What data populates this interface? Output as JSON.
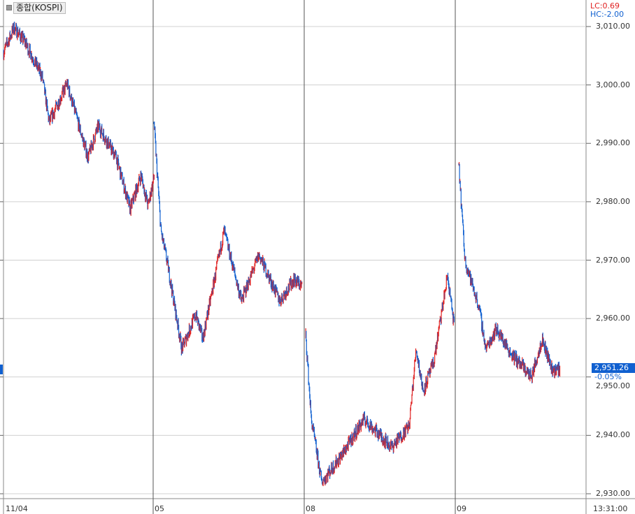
{
  "title": "종합(KOSPI)",
  "indicators": {
    "lc": "LC:0.69",
    "hc": "HC:-2.00"
  },
  "last_price": {
    "value": "2,951.26",
    "change": "-0.05%"
  },
  "colors": {
    "up": "#e02020",
    "down": "#1060d0",
    "grid": "#d0d0d0",
    "day_separator": "#555555"
  },
  "chart_data": {
    "type": "bar",
    "style": "intraday price bars",
    "ylim": [
      2928,
      3014
    ],
    "grid": true,
    "yticks": [
      "3,010.00",
      "3,000.00",
      "2,990.00",
      "2,980.00",
      "2,970.00",
      "2,960.00",
      "2,950.00",
      "2,940.00",
      "2,930.00"
    ],
    "ytick_values": [
      3010,
      3000,
      2990,
      2980,
      2970,
      2960,
      2950,
      2940,
      2930
    ],
    "xticks": [
      "11/04",
      "05",
      "08",
      "09"
    ],
    "x_end_label": "13:31:00",
    "series": [
      {
        "day": "11/04",
        "points": [
          [
            "09:00",
            3005.6
          ],
          [
            "09:27",
            3009.8
          ],
          [
            "09:55",
            3007.4
          ],
          [
            "10:40",
            3001.4
          ],
          [
            "10:58",
            2993.6
          ],
          [
            "11:44",
            3000.2
          ],
          [
            "12:38",
            2987.6
          ],
          [
            "13:05",
            2993.0
          ],
          [
            "13:51",
            2987.6
          ],
          [
            "14:27",
            2978.7
          ],
          [
            "14:55",
            2984.6
          ],
          [
            "15:13",
            2979.3
          ],
          [
            "15:30",
            2984.6
          ]
        ]
      },
      {
        "day": "05",
        "points": [
          [
            "09:02",
            2993.6
          ],
          [
            "09:20",
            2975.0
          ],
          [
            "09:38",
            2969.0
          ],
          [
            "10:14",
            2954.8
          ],
          [
            "10:50",
            2960.7
          ],
          [
            "11:08",
            2956.5
          ],
          [
            "12:03",
            2975.0
          ],
          [
            "12:48",
            2963.0
          ],
          [
            "13:33",
            2970.9
          ],
          [
            "14:27",
            2963.0
          ],
          [
            "15:03",
            2966.7
          ],
          [
            "15:25",
            2965.5
          ]
        ]
      },
      {
        "day": "08",
        "points": [
          [
            "09:04",
            2957.1
          ],
          [
            "09:18",
            2942.8
          ],
          [
            "09:45",
            2932.0
          ],
          [
            "10:39",
            2936.8
          ],
          [
            "11:34",
            2942.8
          ],
          [
            "12:46",
            2938.0
          ],
          [
            "13:31",
            2941.6
          ],
          [
            "13:49",
            2954.8
          ],
          [
            "14:07",
            2947.6
          ],
          [
            "14:34",
            2952.4
          ],
          [
            "15:10",
            2967.3
          ],
          [
            "15:28",
            2958.3
          ]
        ]
      },
      {
        "day": "09",
        "points": [
          [
            "09:09",
            2986.4
          ],
          [
            "09:25",
            2970.0
          ],
          [
            "10:01",
            2962.0
          ],
          [
            "10:19",
            2954.8
          ],
          [
            "10:46",
            2958.3
          ],
          [
            "11:22",
            2954.2
          ],
          [
            "12:17",
            2950.0
          ],
          [
            "12:44",
            2956.5
          ],
          [
            "13:11",
            2951.2
          ],
          [
            "13:31",
            2951.3
          ]
        ]
      }
    ]
  }
}
